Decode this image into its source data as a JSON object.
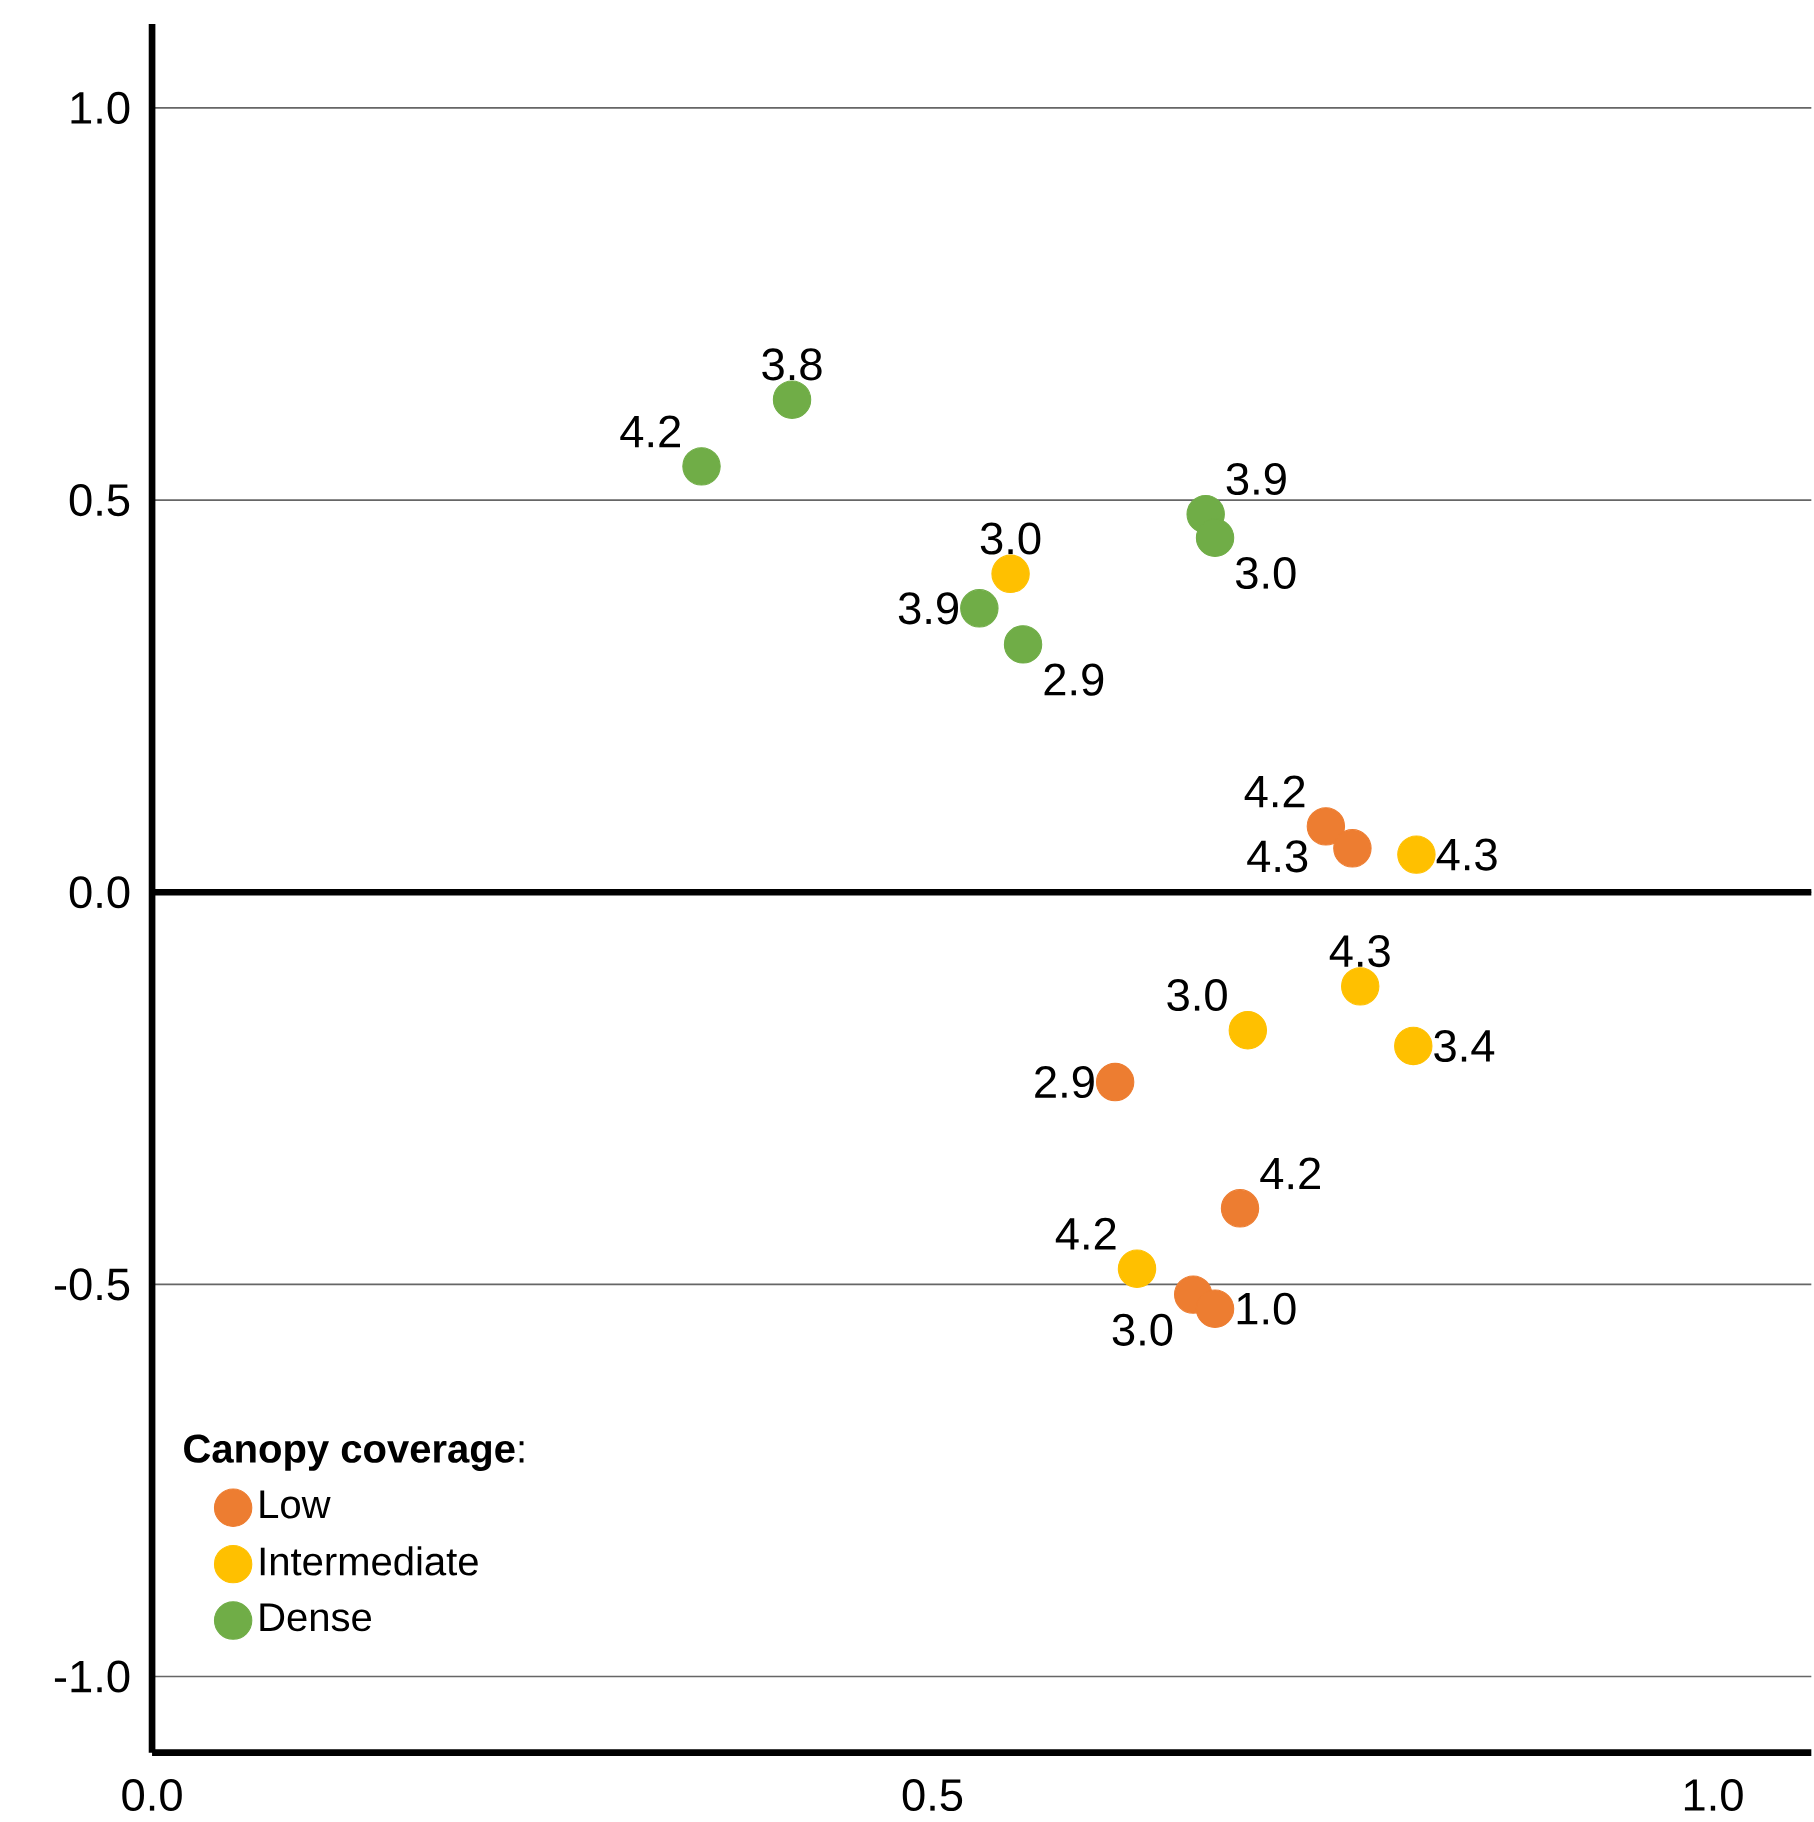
{
  "chart_data": {
    "type": "scatter",
    "legend_title": "**Canopy coverage**:",
    "legend": "bottom left",
    "grid": "y",
    "marker": "circle",
    "xlim": [
      0,
      1.063
    ],
    "ylim": [
      -1.097,
      1.107
    ],
    "xticks": [
      {
        "value": 0,
        "label": "0.0"
      },
      {
        "value": 0.5,
        "label": "0.5"
      },
      {
        "value": 1.0,
        "label": "1.0"
      }
    ],
    "yticks": [
      {
        "value": -1.0,
        "label": "-1.0"
      },
      {
        "value": -0.5,
        "label": "-0.5"
      },
      {
        "value": 0,
        "label": "0.0"
      },
      {
        "value": 0.5,
        "label": "0.5"
      },
      {
        "value": 1.0,
        "label": "1.0"
      }
    ],
    "ref_lines": [
      {
        "axis": "y",
        "value": 0
      }
    ],
    "series": [
      {
        "name": "Low",
        "color": "#ed7d31",
        "x": [
          0.752,
          0.769,
          0.617,
          0.697,
          0.667,
          0.681
        ],
        "values": [
          0.084,
          0.056,
          -0.242,
          -0.403,
          -0.513,
          -0.531
        ]
      },
      {
        "name": "Intermediate",
        "color": "#ffc000",
        "x": [
          0.55,
          0.81,
          0.774,
          0.702,
          0.808,
          0.631
        ],
        "values": [
          0.406,
          0.048,
          -0.12,
          -0.176,
          -0.196,
          -0.48
        ]
      },
      {
        "name": "Dense",
        "color": "#70ad47",
        "x": [
          0.352,
          0.41,
          0.53,
          0.558,
          0.675,
          0.681
        ],
        "values": [
          0.543,
          0.628,
          0.362,
          0.316,
          0.482,
          0.452
        ]
      }
    ],
    "annotations": [
      {
        "text": "4.2",
        "x": 0.752,
        "y": 0.084
      },
      {
        "text": "4.3",
        "x": 0.769,
        "y": 0.056
      },
      {
        "text": "2.9",
        "x": 0.617,
        "y": -0.242
      },
      {
        "text": "4.2",
        "x": 0.697,
        "y": -0.403
      },
      {
        "text": "3.0",
        "x": 0.667,
        "y": -0.513
      },
      {
        "text": "1.0",
        "x": 0.681,
        "y": -0.531
      },
      {
        "text": "3.0",
        "x": 0.55,
        "y": 0.406
      },
      {
        "text": "4.3",
        "x": 0.81,
        "y": 0.048
      },
      {
        "text": "4.3",
        "x": 0.774,
        "y": -0.12
      },
      {
        "text": "3.0",
        "x": 0.702,
        "y": -0.176
      },
      {
        "text": "3.4",
        "x": 0.808,
        "y": -0.196
      },
      {
        "text": "4.2",
        "x": 0.631,
        "y": -0.48
      },
      {
        "text": "4.2",
        "x": 0.352,
        "y": 0.543
      },
      {
        "text": "3.8",
        "x": 0.41,
        "y": 0.628
      },
      {
        "text": "3.9",
        "x": 0.53,
        "y": 0.362
      },
      {
        "text": "2.9",
        "x": 0.558,
        "y": 0.316
      },
      {
        "text": "3.9",
        "x": 0.675,
        "y": 0.482
      },
      {
        "text": "3.0",
        "x": 0.681,
        "y": 0.452
      }
    ]
  }
}
